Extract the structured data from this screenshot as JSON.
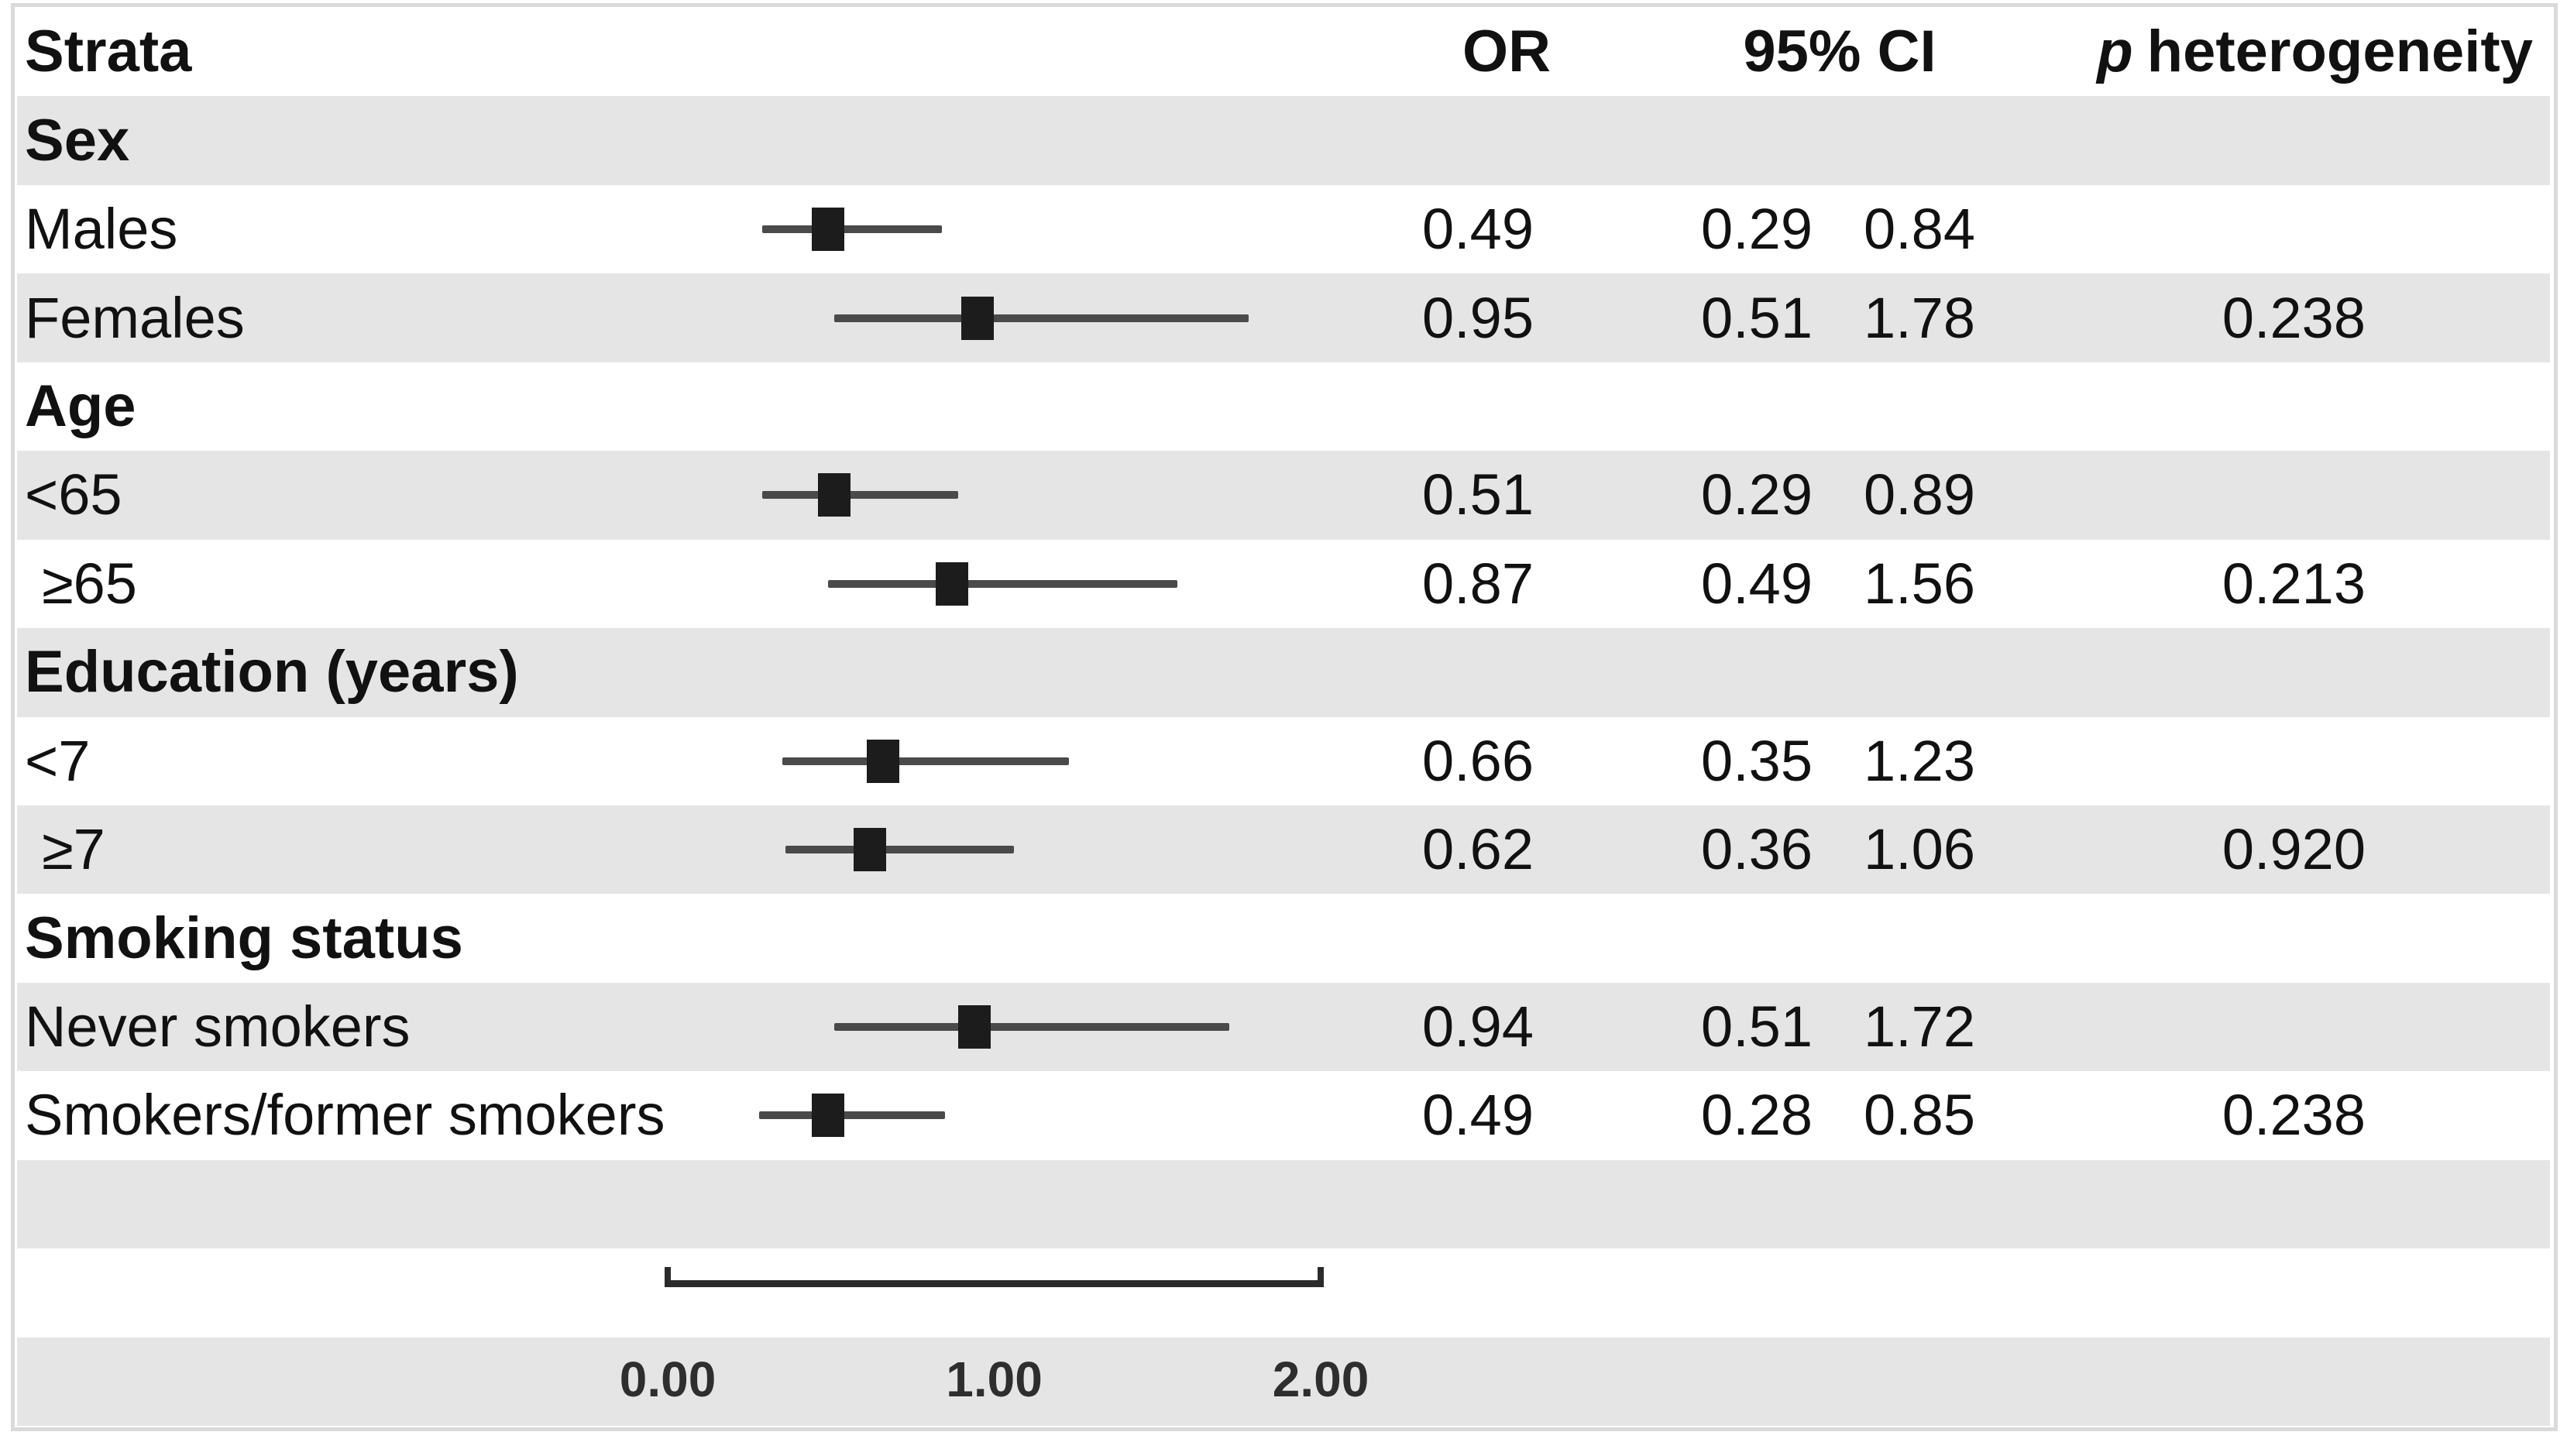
{
  "header": {
    "strata": "Strata",
    "or": "OR",
    "ci": "95% CI",
    "p_italic": "p",
    "p_rest": "heterogeneity"
  },
  "colors": {
    "stripe": "#e5e5e5",
    "marker": "#1c1c1c",
    "ci_line": "#4a4a4a",
    "axis_line": "#2b2b2b",
    "reference_line": "#161616",
    "text": "#111111",
    "frame": "#dadada"
  },
  "chart_data": {
    "type": "forest",
    "title": "",
    "columns": [
      "Strata",
      "OR",
      "95% CI",
      "p heterogeneity"
    ],
    "x_axis": {
      "ticks": [
        "0.00",
        "1.00",
        "2.00"
      ],
      "tick_values": [
        0,
        1,
        2
      ],
      "range": [
        0,
        2
      ],
      "reference_line": 1.0,
      "grid": false
    },
    "legend": "none",
    "rows": [
      {
        "kind": "group",
        "label": "Sex"
      },
      {
        "kind": "data",
        "label": "Males",
        "indent": false,
        "or": "0.49",
        "lo": "0.29",
        "hi": "0.84",
        "p": ""
      },
      {
        "kind": "data",
        "label": "Females",
        "indent": false,
        "or": "0.95",
        "lo": "0.51",
        "hi": "1.78",
        "p": "0.238"
      },
      {
        "kind": "group",
        "label": "Age"
      },
      {
        "kind": "data",
        "label": "<65",
        "indent": false,
        "or": "0.51",
        "lo": "0.29",
        "hi": "0.89",
        "p": ""
      },
      {
        "kind": "data",
        "label": "≥65",
        "indent": true,
        "or": "0.87",
        "lo": "0.49",
        "hi": "1.56",
        "p": "0.213"
      },
      {
        "kind": "group",
        "label": "Education (years)"
      },
      {
        "kind": "data",
        "label": "<7",
        "indent": false,
        "or": "0.66",
        "lo": "0.35",
        "hi": "1.23",
        "p": ""
      },
      {
        "kind": "data",
        "label": "≥7",
        "indent": true,
        "or": "0.62",
        "lo": "0.36",
        "hi": "1.06",
        "p": "0.920"
      },
      {
        "kind": "group",
        "label": "Smoking status"
      },
      {
        "kind": "data",
        "label": "Never smokers",
        "indent": false,
        "or": "0.94",
        "lo": "0.51",
        "hi": "1.72",
        "p": ""
      },
      {
        "kind": "data",
        "label": "Smokers/former smokers",
        "indent": false,
        "or": "0.49",
        "lo": "0.28",
        "hi": "0.85",
        "p": "0.238"
      },
      {
        "kind": "spacer"
      },
      {
        "kind": "axis"
      },
      {
        "kind": "ticklabels"
      }
    ]
  }
}
